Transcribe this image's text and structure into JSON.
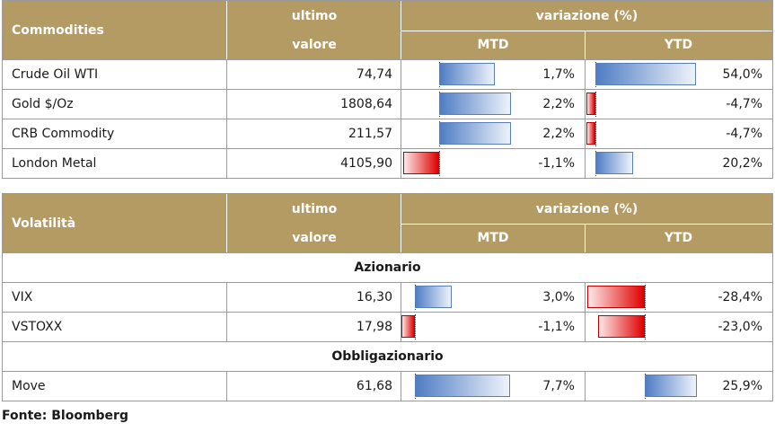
{
  "commodities": {
    "header": {
      "name": "Commodities",
      "ultimo": "ultimo",
      "valore": "valore",
      "variazione": "variazione (%)",
      "mtd": "MTD",
      "ytd": "YTD"
    },
    "rows": [
      {
        "name": "Crude Oil WTI",
        "value": "74,74",
        "mtd_label": "1,7%",
        "ytd_label": "54,0%",
        "mtd": 1.7,
        "ytd": 54.0
      },
      {
        "name": "Gold $/Oz",
        "value": "1808,64",
        "mtd_label": "2,2%",
        "ytd_label": "-4,7%",
        "mtd": 2.2,
        "ytd": -4.7
      },
      {
        "name": "CRB Commodity",
        "value": "211,57",
        "mtd_label": "2,2%",
        "ytd_label": "-4,7%",
        "mtd": 2.2,
        "ytd": -4.7
      },
      {
        "name": "London Metal",
        "value": "4105,90",
        "mtd_label": "-1,1%",
        "ytd_label": "20,2%",
        "mtd": -1.1,
        "ytd": 20.2
      }
    ]
  },
  "volatility": {
    "header": {
      "name": "Volatilità",
      "ultimo": "ultimo",
      "valore": "valore",
      "variazione": "variazione (%)",
      "mtd": "MTD",
      "ytd": "YTD"
    },
    "section_equity": "Azionario",
    "section_bond": "Obbligazionario",
    "rows_equity": [
      {
        "name": "VIX",
        "value": "16,30",
        "mtd_label": "3,0%",
        "ytd_label": "-28,4%",
        "mtd": 3.0,
        "ytd": -28.4
      },
      {
        "name": "VSTOXX",
        "value": "17,98",
        "mtd_label": "-1,1%",
        "ytd_label": "-23,0%",
        "mtd": -1.1,
        "ytd": -23.0
      }
    ],
    "rows_bond": [
      {
        "name": "Move",
        "value": "61,68",
        "mtd_label": "7,7%",
        "ytd_label": "25,9%",
        "mtd": 7.7,
        "ytd": 25.9
      }
    ]
  },
  "footer": "Fonte: Bloomberg",
  "colors": {
    "header_bg": "#b49a63",
    "positive_bar": "#4f7dc4",
    "negative_bar": "#e00000"
  }
}
